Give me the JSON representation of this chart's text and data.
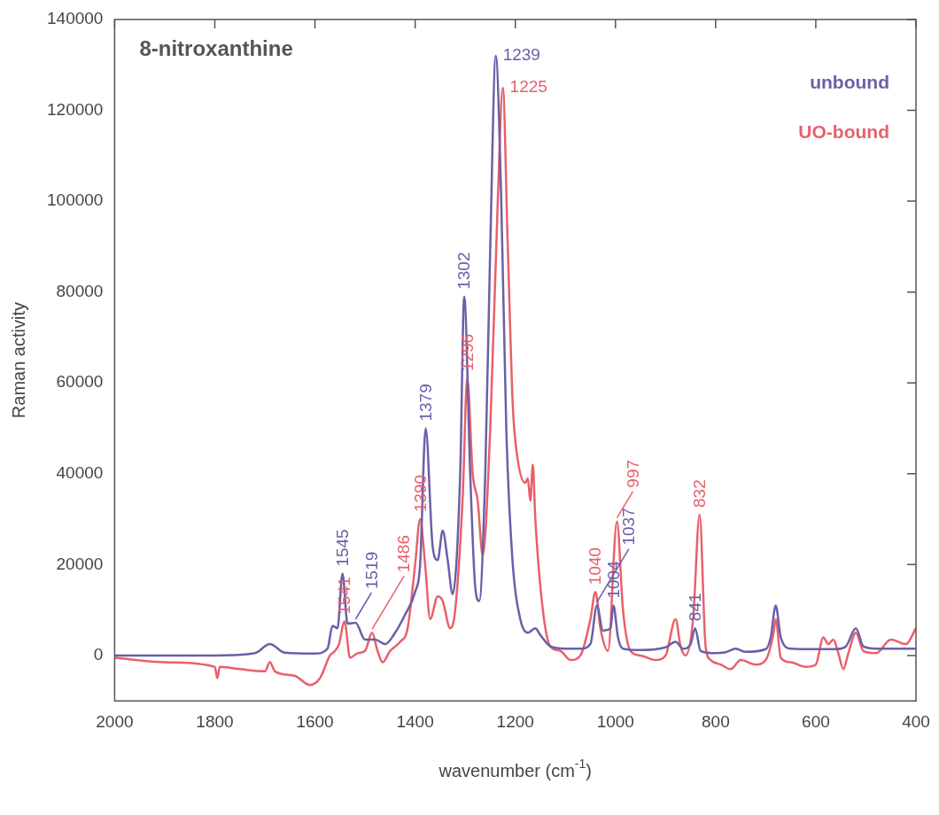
{
  "chart_data": {
    "type": "line",
    "title": "8-nitroxanthine",
    "xlabel": "wavenumber (cm$^{-1}$)",
    "ylabel": "Raman activity",
    "xlim": [
      2000,
      400
    ],
    "xticks": [
      2000,
      1800,
      1600,
      1400,
      1200,
      1000,
      800,
      600,
      400
    ],
    "ylim": [
      -10000,
      140000
    ],
    "yticks": [
      0,
      20000,
      40000,
      60000,
      80000,
      100000,
      120000,
      140000
    ],
    "grid": false,
    "legend": "top right",
    "marker": "none",
    "line_style": "solid",
    "series": [
      {
        "name": "unbound",
        "color": "#6a5fa8",
        "x": [
          2000,
          1800,
          1720,
          1690,
          1660,
          1600,
          1575,
          1565,
          1555,
          1545,
          1535,
          1519,
          1500,
          1480,
          1460,
          1440,
          1420,
          1400,
          1390,
          1379,
          1365,
          1355,
          1345,
          1335,
          1325,
          1310,
          1302,
          1290,
          1280,
          1272,
          1260,
          1250,
          1239,
          1228,
          1218,
          1205,
          1190,
          1175,
          1160,
          1150,
          1130,
          1100,
          1070,
          1050,
          1037,
          1025,
          1010,
          1004,
          995,
          985,
          950,
          900,
          880,
          865,
          850,
          841,
          830,
          800,
          780,
          760,
          740,
          700,
          690,
          680,
          670,
          650,
          600,
          560,
          540,
          520,
          505,
          480,
          400
        ],
        "values": [
          0,
          0,
          500,
          2500,
          600,
          400,
          1500,
          6500,
          6000,
          18000,
          7000,
          7200,
          3500,
          3500,
          2500,
          5000,
          9000,
          14000,
          20000,
          50000,
          24000,
          21000,
          27500,
          21000,
          13500,
          40000,
          79000,
          40000,
          15000,
          12000,
          40000,
          90000,
          132000,
          100000,
          50000,
          20000,
          8000,
          5000,
          6000,
          4500,
          2000,
          1500,
          1500,
          2500,
          11000,
          5500,
          6000,
          11000,
          4000,
          1500,
          1200,
          1800,
          3000,
          1500,
          2500,
          6000,
          1000,
          500,
          700,
          1500,
          800,
          1400,
          4000,
          11000,
          4000,
          1500,
          1400,
          1400,
          2000,
          6000,
          2000,
          1500,
          1500
        ]
      },
      {
        "name": "UO-bound",
        "color": "#e8606a",
        "x": [
          2000,
          1900,
          1800,
          1795,
          1790,
          1750,
          1700,
          1690,
          1680,
          1640,
          1610,
          1590,
          1570,
          1560,
          1552,
          1541,
          1530,
          1515,
          1500,
          1486,
          1475,
          1465,
          1450,
          1430,
          1415,
          1400,
          1390,
          1380,
          1370,
          1355,
          1345,
          1330,
          1320,
          1305,
          1296,
          1285,
          1275,
          1265,
          1250,
          1235,
          1225,
          1215,
          1205,
          1195,
          1180,
          1175,
          1170,
          1165,
          1160,
          1145,
          1130,
          1110,
          1090,
          1070,
          1050,
          1040,
          1030,
          1015,
          997,
          985,
          970,
          950,
          920,
          900,
          880,
          870,
          860,
          845,
          832,
          820,
          810,
          790,
          770,
          750,
          720,
          700,
          685,
          680,
          670,
          650,
          620,
          600,
          585,
          575,
          565,
          555,
          545,
          535,
          520,
          505,
          480,
          450,
          420,
          400
        ],
        "values": [
          -500,
          -1500,
          -2500,
          -5000,
          -2500,
          -3000,
          -3500,
          -1500,
          -3500,
          -4500,
          -6500,
          -5000,
          0,
          1000,
          2500,
          7500,
          -500,
          500,
          1000,
          5000,
          1000,
          -1500,
          1000,
          3000,
          6000,
          20000,
          30000,
          20000,
          8000,
          13000,
          12000,
          6000,
          10000,
          35000,
          61000,
          40000,
          34000,
          22000,
          50000,
          100000,
          125000,
          90000,
          55000,
          43000,
          38000,
          39000,
          34000,
          42000,
          30000,
          10000,
          2000,
          1000,
          -1000,
          0,
          8000,
          14000,
          6000,
          1000,
          29500,
          10000,
          1000,
          0,
          -1000,
          0,
          8000,
          2000,
          0,
          8000,
          31000,
          2000,
          -1000,
          -2000,
          -3000,
          -1000,
          -2000,
          -1000,
          4500,
          8000,
          -500,
          -1500,
          -2500,
          -2000,
          4000,
          2500,
          3500,
          500,
          -3000,
          500,
          5000,
          1000,
          500,
          3500,
          2500,
          6000
        ]
      }
    ],
    "annotations": [
      {
        "text": "1239",
        "x": 1239,
        "y": 132000
      },
      {
        "text": "1225",
        "x": 1225,
        "y": 125000
      },
      {
        "text": "1302",
        "x": 1302,
        "y": 79000
      },
      {
        "text": "1296",
        "x": 1296,
        "y": 61000
      },
      {
        "text": "1379",
        "x": 1379,
        "y": 50000
      },
      {
        "text": "1390",
        "x": 1390,
        "y": 30000
      },
      {
        "text": "1545",
        "x": 1545,
        "y": 18000
      },
      {
        "text": "1541",
        "x": 1541,
        "y": 7500
      },
      {
        "text": "1519",
        "x": 1519,
        "y": 7200
      },
      {
        "text": "1486",
        "x": 1486,
        "y": 5000
      },
      {
        "text": "1040",
        "x": 1040,
        "y": 14000
      },
      {
        "text": "1037",
        "x": 1037,
        "y": 11000
      },
      {
        "text": "1004",
        "x": 1004,
        "y": 11000
      },
      {
        "text": "997",
        "x": 997,
        "y": 29500
      },
      {
        "text": "832",
        "x": 832,
        "y": 31000
      },
      {
        "text": "841",
        "x": 841,
        "y": 6000
      }
    ]
  }
}
